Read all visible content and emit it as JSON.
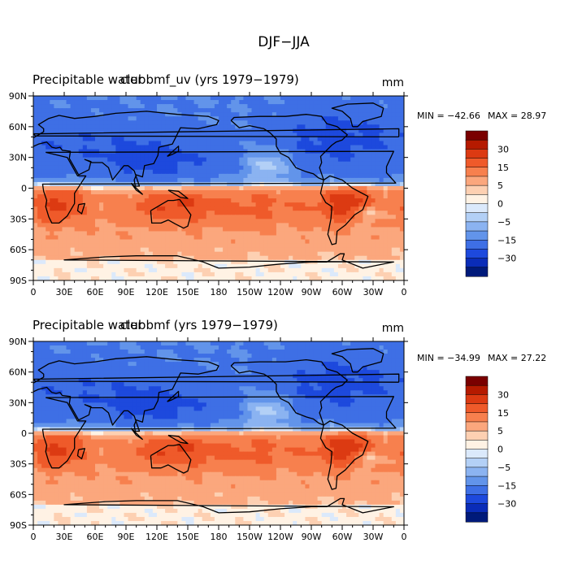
{
  "figure": {
    "title": "DJF−JJA"
  },
  "colorbar": {
    "colors": [
      "#7a0000",
      "#b51a00",
      "#dc3a12",
      "#ef5a2a",
      "#f7804e",
      "#fba77d",
      "#fdd0b2",
      "#fff2e4",
      "#dbe9fb",
      "#b3d0f6",
      "#8bb3f1",
      "#6294ea",
      "#3e6fe5",
      "#1d49dd",
      "#0a2cb8",
      "#001a7a"
    ],
    "labels": [
      "30",
      "15",
      "5",
      "0",
      "−5",
      "−15",
      "−30"
    ]
  },
  "chart_data": [
    {
      "type": "heatmap",
      "title": "Precipitable water",
      "subtitle": "clubbmf_uv (yrs 1979−1979)",
      "units": "mm",
      "min_label": "MIN = −42.66",
      "max_label": "MAX =  28.97",
      "min": -42.66,
      "max": 28.97,
      "xlim": [
        0,
        360
      ],
      "ylim": [
        -90,
        90
      ],
      "xticks": [
        "0",
        "30E",
        "60E",
        "90E",
        "120E",
        "150E",
        "180",
        "150W",
        "120W",
        "90W",
        "60W",
        "30W",
        "0"
      ],
      "yticks": [
        "90N",
        "60N",
        "30N",
        "0",
        "30S",
        "60S",
        "90S"
      ],
      "colorbar_levels": [
        -30,
        -15,
        -5,
        0,
        5,
        15,
        30
      ]
    },
    {
      "type": "heatmap",
      "title": "Precipitable water",
      "subtitle": "clubbmf (yrs 1979−1979)",
      "units": "mm",
      "min_label": "MIN = −34.99",
      "max_label": "MAX =  27.22",
      "min": -34.99,
      "max": 27.22,
      "xlim": [
        0,
        360
      ],
      "ylim": [
        -90,
        90
      ],
      "xticks": [
        "0",
        "30E",
        "60E",
        "90E",
        "120E",
        "150E",
        "180",
        "150W",
        "120W",
        "90W",
        "60W",
        "30W",
        "0"
      ],
      "yticks": [
        "90N",
        "60N",
        "30N",
        "0",
        "30S",
        "60S",
        "90S"
      ],
      "colorbar_levels": [
        -30,
        -15,
        -5,
        0,
        5,
        15,
        30
      ]
    }
  ]
}
